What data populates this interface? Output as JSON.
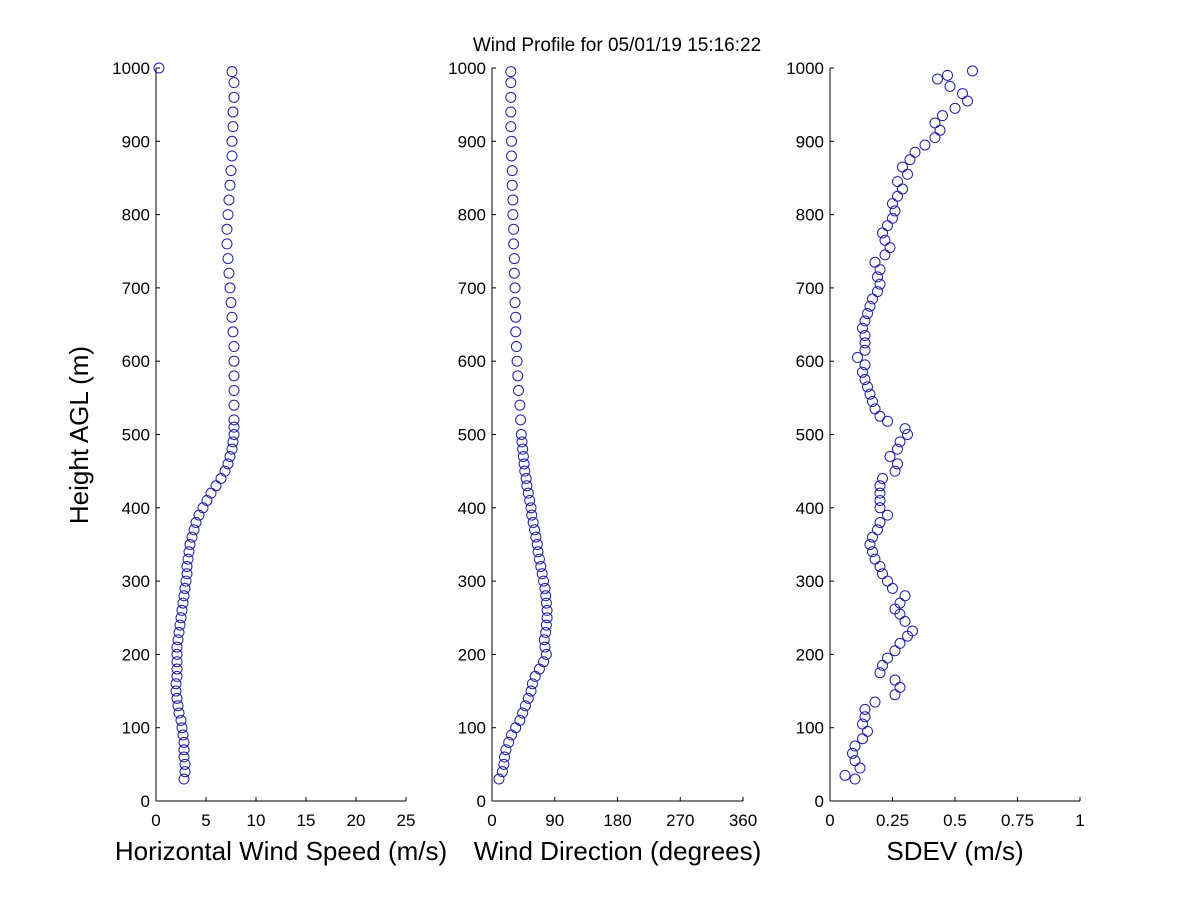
{
  "chart_data": {
    "title": "Wind Profile for  05/01/19 15:16:22",
    "ylabel": "Height AGL (m)",
    "marker_color": "#1f1fa8",
    "panels": [
      {
        "type": "scatter",
        "xlabel": "Horizontal Wind Speed (m/s)",
        "xlim": [
          0,
          25
        ],
        "xticks": [
          0,
          5,
          10,
          15,
          20,
          25
        ],
        "ylim": [
          0,
          1000
        ],
        "yticks": [
          0,
          100,
          200,
          300,
          400,
          500,
          600,
          700,
          800,
          900,
          1000
        ],
        "points": [
          [
            2.8,
            30
          ],
          [
            2.9,
            40
          ],
          [
            2.9,
            50
          ],
          [
            2.8,
            60
          ],
          [
            2.8,
            70
          ],
          [
            2.8,
            80
          ],
          [
            2.7,
            90
          ],
          [
            2.6,
            100
          ],
          [
            2.5,
            110
          ],
          [
            2.3,
            120
          ],
          [
            2.2,
            130
          ],
          [
            2.1,
            140
          ],
          [
            2.0,
            150
          ],
          [
            2.0,
            160
          ],
          [
            2.1,
            170
          ],
          [
            2.1,
            180
          ],
          [
            2.1,
            190
          ],
          [
            2.1,
            200
          ],
          [
            2.1,
            210
          ],
          [
            2.2,
            220
          ],
          [
            2.3,
            230
          ],
          [
            2.4,
            240
          ],
          [
            2.5,
            250
          ],
          [
            2.6,
            260
          ],
          [
            2.7,
            270
          ],
          [
            2.8,
            280
          ],
          [
            2.9,
            290
          ],
          [
            3.0,
            300
          ],
          [
            3.1,
            310
          ],
          [
            3.1,
            320
          ],
          [
            3.2,
            330
          ],
          [
            3.3,
            340
          ],
          [
            3.4,
            350
          ],
          [
            3.6,
            360
          ],
          [
            3.8,
            370
          ],
          [
            4.0,
            380
          ],
          [
            4.3,
            390
          ],
          [
            4.7,
            400
          ],
          [
            5.1,
            410
          ],
          [
            5.5,
            420
          ],
          [
            6.0,
            430
          ],
          [
            6.5,
            440
          ],
          [
            6.9,
            450
          ],
          [
            7.2,
            460
          ],
          [
            7.4,
            470
          ],
          [
            7.6,
            480
          ],
          [
            7.7,
            490
          ],
          [
            7.8,
            500
          ],
          [
            7.8,
            510
          ],
          [
            7.8,
            520
          ],
          [
            7.8,
            540
          ],
          [
            7.8,
            560
          ],
          [
            7.8,
            580
          ],
          [
            7.8,
            600
          ],
          [
            7.8,
            620
          ],
          [
            7.7,
            640
          ],
          [
            7.6,
            660
          ],
          [
            7.5,
            680
          ],
          [
            7.4,
            700
          ],
          [
            7.3,
            720
          ],
          [
            7.2,
            740
          ],
          [
            7.1,
            760
          ],
          [
            7.1,
            780
          ],
          [
            7.2,
            800
          ],
          [
            7.3,
            820
          ],
          [
            7.4,
            840
          ],
          [
            7.5,
            860
          ],
          [
            7.6,
            880
          ],
          [
            7.6,
            900
          ],
          [
            7.7,
            920
          ],
          [
            7.7,
            940
          ],
          [
            7.8,
            960
          ],
          [
            7.8,
            980
          ],
          [
            7.6,
            995
          ],
          [
            0.3,
            1000
          ]
        ]
      },
      {
        "type": "scatter",
        "xlabel": "Wind Direction (degrees)",
        "xlim": [
          0,
          360
        ],
        "xticks": [
          0,
          90,
          180,
          270,
          360
        ],
        "ylim": [
          0,
          1000
        ],
        "yticks": [
          0,
          100,
          200,
          300,
          400,
          500,
          600,
          700,
          800,
          900,
          1000
        ],
        "points": [
          [
            10,
            30
          ],
          [
            15,
            40
          ],
          [
            17,
            50
          ],
          [
            18,
            60
          ],
          [
            20,
            70
          ],
          [
            24,
            80
          ],
          [
            28,
            90
          ],
          [
            34,
            100
          ],
          [
            40,
            110
          ],
          [
            44,
            120
          ],
          [
            48,
            130
          ],
          [
            52,
            140
          ],
          [
            56,
            150
          ],
          [
            58,
            160
          ],
          [
            62,
            170
          ],
          [
            68,
            180
          ],
          [
            74,
            190
          ],
          [
            78,
            200
          ],
          [
            76,
            210
          ],
          [
            75,
            220
          ],
          [
            77,
            230
          ],
          [
            78,
            240
          ],
          [
            79,
            250
          ],
          [
            79,
            260
          ],
          [
            78,
            270
          ],
          [
            77,
            280
          ],
          [
            76,
            290
          ],
          [
            74,
            300
          ],
          [
            72,
            310
          ],
          [
            70,
            320
          ],
          [
            68,
            330
          ],
          [
            66,
            340
          ],
          [
            65,
            350
          ],
          [
            63,
            360
          ],
          [
            61,
            370
          ],
          [
            59,
            380
          ],
          [
            57,
            390
          ],
          [
            56,
            400
          ],
          [
            54,
            410
          ],
          [
            52,
            420
          ],
          [
            50,
            430
          ],
          [
            49,
            440
          ],
          [
            47,
            450
          ],
          [
            46,
            460
          ],
          [
            45,
            470
          ],
          [
            44,
            480
          ],
          [
            43,
            490
          ],
          [
            42,
            500
          ],
          [
            41,
            520
          ],
          [
            40,
            540
          ],
          [
            38,
            560
          ],
          [
            37,
            580
          ],
          [
            36,
            600
          ],
          [
            35,
            620
          ],
          [
            34,
            640
          ],
          [
            34,
            660
          ],
          [
            33,
            680
          ],
          [
            33,
            700
          ],
          [
            32,
            720
          ],
          [
            32,
            740
          ],
          [
            31,
            760
          ],
          [
            31,
            780
          ],
          [
            30,
            800
          ],
          [
            30,
            820
          ],
          [
            29,
            840
          ],
          [
            29,
            860
          ],
          [
            28,
            880
          ],
          [
            28,
            900
          ],
          [
            27,
            920
          ],
          [
            27,
            940
          ],
          [
            27,
            960
          ],
          [
            27,
            980
          ],
          [
            27,
            995
          ]
        ]
      },
      {
        "type": "scatter",
        "xlabel": "SDEV  (m/s)",
        "xlim": [
          0,
          1
        ],
        "xticks": [
          0,
          0.25,
          0.5,
          0.75,
          1
        ],
        "xticklabels": [
          "0",
          "0.25",
          "0.5",
          "0.75",
          "1"
        ],
        "ylim": [
          0,
          1000
        ],
        "yticks": [
          0,
          100,
          200,
          300,
          400,
          500,
          600,
          700,
          800,
          900,
          1000
        ],
        "points": [
          [
            0.1,
            30
          ],
          [
            0.06,
            35
          ],
          [
            0.12,
            45
          ],
          [
            0.1,
            55
          ],
          [
            0.09,
            65
          ],
          [
            0.1,
            75
          ],
          [
            0.13,
            85
          ],
          [
            0.15,
            95
          ],
          [
            0.13,
            105
          ],
          [
            0.14,
            115
          ],
          [
            0.14,
            125
          ],
          [
            0.18,
            135
          ],
          [
            0.26,
            145
          ],
          [
            0.28,
            155
          ],
          [
            0.26,
            165
          ],
          [
            0.2,
            175
          ],
          [
            0.21,
            185
          ],
          [
            0.23,
            195
          ],
          [
            0.26,
            205
          ],
          [
            0.28,
            215
          ],
          [
            0.31,
            225
          ],
          [
            0.33,
            232
          ],
          [
            0.3,
            245
          ],
          [
            0.28,
            255
          ],
          [
            0.26,
            262
          ],
          [
            0.28,
            270
          ],
          [
            0.3,
            280
          ],
          [
            0.25,
            290
          ],
          [
            0.23,
            300
          ],
          [
            0.21,
            310
          ],
          [
            0.2,
            320
          ],
          [
            0.18,
            330
          ],
          [
            0.17,
            340
          ],
          [
            0.16,
            350
          ],
          [
            0.17,
            360
          ],
          [
            0.19,
            370
          ],
          [
            0.2,
            380
          ],
          [
            0.23,
            390
          ],
          [
            0.2,
            400
          ],
          [
            0.2,
            410
          ],
          [
            0.2,
            420
          ],
          [
            0.2,
            430
          ],
          [
            0.21,
            440
          ],
          [
            0.26,
            450
          ],
          [
            0.27,
            460
          ],
          [
            0.24,
            470
          ],
          [
            0.27,
            480
          ],
          [
            0.28,
            490
          ],
          [
            0.31,
            500
          ],
          [
            0.3,
            508
          ],
          [
            0.23,
            518
          ],
          [
            0.2,
            525
          ],
          [
            0.18,
            535
          ],
          [
            0.17,
            545
          ],
          [
            0.16,
            555
          ],
          [
            0.15,
            565
          ],
          [
            0.14,
            575
          ],
          [
            0.13,
            585
          ],
          [
            0.14,
            595
          ],
          [
            0.11,
            605
          ],
          [
            0.14,
            615
          ],
          [
            0.14,
            625
          ],
          [
            0.14,
            635
          ],
          [
            0.13,
            645
          ],
          [
            0.14,
            655
          ],
          [
            0.15,
            665
          ],
          [
            0.16,
            675
          ],
          [
            0.17,
            685
          ],
          [
            0.19,
            695
          ],
          [
            0.2,
            705
          ],
          [
            0.19,
            715
          ],
          [
            0.2,
            725
          ],
          [
            0.18,
            735
          ],
          [
            0.22,
            745
          ],
          [
            0.24,
            755
          ],
          [
            0.22,
            765
          ],
          [
            0.21,
            775
          ],
          [
            0.23,
            785
          ],
          [
            0.25,
            795
          ],
          [
            0.26,
            805
          ],
          [
            0.25,
            815
          ],
          [
            0.27,
            825
          ],
          [
            0.29,
            835
          ],
          [
            0.27,
            845
          ],
          [
            0.31,
            855
          ],
          [
            0.29,
            865
          ],
          [
            0.32,
            875
          ],
          [
            0.34,
            885
          ],
          [
            0.38,
            895
          ],
          [
            0.42,
            905
          ],
          [
            0.44,
            915
          ],
          [
            0.42,
            925
          ],
          [
            0.45,
            935
          ],
          [
            0.5,
            945
          ],
          [
            0.55,
            955
          ],
          [
            0.53,
            965
          ],
          [
            0.48,
            975
          ],
          [
            0.43,
            985
          ],
          [
            0.47,
            990
          ],
          [
            0.57,
            996
          ]
        ]
      }
    ]
  }
}
